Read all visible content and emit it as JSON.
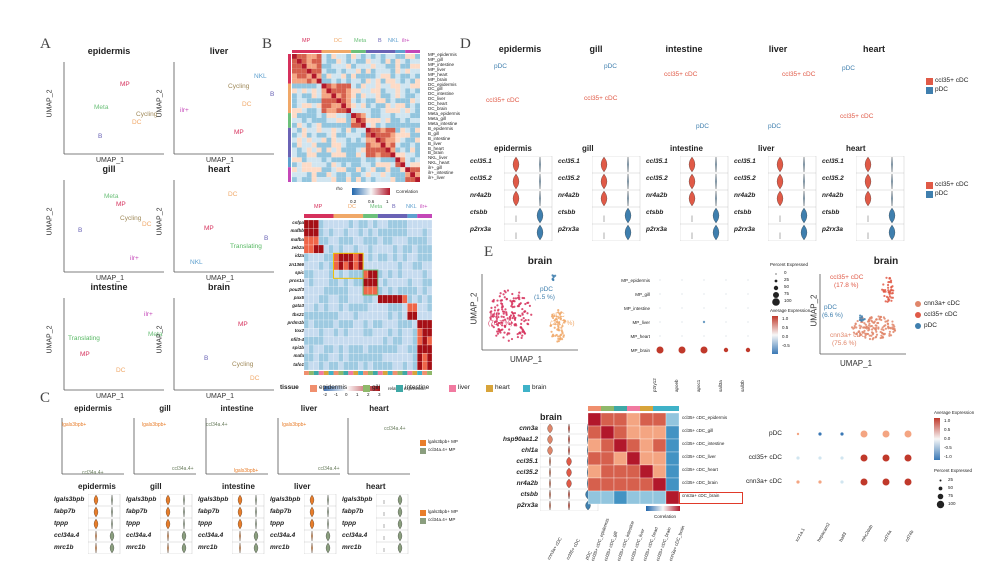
{
  "figure": {
    "panels": [
      "A",
      "B",
      "C",
      "D",
      "E"
    ],
    "umap_x": "UMAP_1",
    "umap_y": "UMAP_2",
    "colors": {
      "mp": "#d6315c",
      "dc": "#f0a868",
      "meta": "#6cc07a",
      "b": "#6a63b5",
      "nkl": "#5fa0cf",
      "ilr": "#c447b8",
      "translating": "#58b964",
      "cycling": "#a08a5a",
      "ccl35": "#e05a47",
      "pdc": "#3f7fae",
      "orange": "#e87d2a",
      "grey": "#8a9e7e",
      "cnn3a": "#e0866a"
    }
  },
  "panelA": {
    "plots": [
      {
        "title": "epidermis",
        "labels": [
          "MP",
          "Meta",
          "Cycling",
          "DC",
          "B"
        ]
      },
      {
        "title": "liver",
        "labels": [
          "NKL",
          "B",
          "Cycling",
          "DC",
          "ilr+",
          "MP"
        ]
      },
      {
        "title": "gill",
        "labels": [
          "Meta",
          "MP",
          "Cycling",
          "B",
          "DC",
          "ilr+"
        ]
      },
      {
        "title": "heart",
        "labels": [
          "DC",
          "MP",
          "Translating",
          "NKL",
          "B"
        ]
      },
      {
        "title": "intestine",
        "labels": [
          "ilr+",
          "Translating",
          "MP",
          "DC",
          "Meta"
        ]
      },
      {
        "title": "brain",
        "labels": [
          "MP",
          "B",
          "Cycling",
          "DC"
        ]
      }
    ]
  },
  "panelB": {
    "top_groups": [
      "MP",
      "DC",
      "Meta",
      "B",
      "NKL",
      "ilr+"
    ],
    "row_labels": [
      "MP_epidermis",
      "MP_gill",
      "MP_intestine",
      "MP_liver",
      "MP_heart",
      "MP_brain",
      "DC_epidermis",
      "DC_gill",
      "DC_intestine",
      "DC_liver",
      "DC_heart",
      "DC_brain",
      "Meta_epidermis",
      "Meta_gill",
      "Meta_intestine",
      "B_epidermis",
      "B_gill",
      "B_intestine",
      "B_liver",
      "B_heart",
      "B_brain",
      "NKL_liver",
      "NKL_heart",
      "ilr+_gill",
      "ilr+_intestine",
      "ilr+_liver"
    ],
    "corr_legend_title": "Correlation",
    "corr_legend_ticks": [
      "0.2",
      "0.6",
      "1"
    ],
    "corr_legend_caption": "rho",
    "genes": [
      "csfpa",
      "mafbb",
      "mafba",
      "zeb2a",
      "id2a",
      "zn1366",
      "spic",
      "prox1a",
      "pou2f3",
      "pax5",
      "gata3",
      "tbx21",
      "prdm1b",
      "tox2",
      "nfil3-4",
      "spi1b",
      "mafa",
      "tafo1"
    ],
    "expr_legend_caption": "relative expression",
    "expr_legend_ticks": [
      "-2",
      "-1",
      "0",
      "1",
      "2",
      "3"
    ],
    "tissue_title": "tissue",
    "tissues": [
      {
        "name": "epidermis",
        "color": "#f08f6e"
      },
      {
        "name": "gill",
        "color": "#8fb86a"
      },
      {
        "name": "intestine",
        "color": "#3fa8a6"
      },
      {
        "name": "liver",
        "color": "#f17aa0"
      },
      {
        "name": "heart",
        "color": "#d8a43a"
      },
      {
        "name": "brain",
        "color": "#3fb2c8"
      }
    ]
  },
  "panelC": {
    "plots": [
      {
        "title": "epidermis",
        "labels": [
          "lgals3bpb+",
          "ccl34a.4+"
        ]
      },
      {
        "title": "gill",
        "labels": [
          "lgals3bpb+",
          "ccl34a.4+"
        ]
      },
      {
        "title": "intestine",
        "labels": [
          "ccl34a.4+",
          "lgals3bpb+"
        ]
      },
      {
        "title": "liver",
        "labels": [
          "lgals3bpb+",
          "ccl34a.4+"
        ]
      },
      {
        "title": "heart",
        "labels": [
          "ccl34a.4+"
        ]
      }
    ],
    "legend": [
      "lgals3bpb+ MP",
      "ccl34a.4+ MP"
    ],
    "violin_titles": [
      "epidermis",
      "gill",
      "intestine",
      "liver",
      "heart"
    ],
    "genes": [
      "lgals3bpb",
      "fabp7b",
      "tppp",
      "ccl34a.4",
      "mrc1b"
    ]
  },
  "panelD": {
    "plots": [
      {
        "title": "epidermis",
        "labels": [
          "pDC",
          "ccl35+ cDC"
        ]
      },
      {
        "title": "gill",
        "labels": [
          "pDC",
          "ccl35+ cDC"
        ]
      },
      {
        "title": "intestine",
        "labels": [
          "ccl35+ cDC",
          "pDC"
        ]
      },
      {
        "title": "liver",
        "labels": [
          "ccl35+ cDC",
          "pDC"
        ]
      },
      {
        "title": "heart",
        "labels": [
          "pDC",
          "ccl35+ cDC"
        ]
      }
    ],
    "legend": [
      "ccl35+ cDC",
      "pDC"
    ],
    "violin_titles": [
      "epidermis",
      "gill",
      "intestine",
      "liver",
      "heart"
    ],
    "genes": [
      "ccl35.1",
      "ccl35.2",
      "nr4a2b",
      "ctsbb",
      "p2rx3a"
    ]
  },
  "panelE": {
    "brain_title": "brain",
    "brain_labels": [
      {
        "name": "pDC",
        "pct": "(1.5 %)"
      },
      {
        "name": "MP",
        "pct": "(76.7 %)"
      },
      {
        "name": "cDC",
        "pct": "(21.7 %)"
      }
    ],
    "dot_rows": [
      "MP_epidermis",
      "MP_gill",
      "MP_intestine",
      "MP_liver",
      "MP_heart",
      "MP_brain"
    ],
    "dot_cols": [
      "p2ry12",
      "apoeb",
      "apoc1",
      "sall3a",
      "sall3b"
    ],
    "pct_title": "Percent Expressed",
    "pct_ticks": [
      "0",
      "25",
      "50",
      "75",
      "100"
    ],
    "avg_title": "Average Expression",
    "avg_ticks": [
      "1.0",
      "0.5",
      "0.0",
      "-0.5"
    ],
    "brain2_title": "brain",
    "brain2_labels": [
      {
        "name": "ccl35+ cDC",
        "pct": "(17.8 %)"
      },
      {
        "name": "pDC",
        "pct": "(6.6 %)"
      },
      {
        "name": "cnn3a+ cDC",
        "pct": "(75.6 %)"
      }
    ],
    "brain2_legend": [
      "cnn3a+ cDC",
      "ccl35+ cDC",
      "pDC"
    ],
    "violin_title": "brain",
    "violin_genes": [
      "cnn3a",
      "hsp90aa1.2",
      "chl1a",
      "ccl35.1",
      "ccl35.2",
      "nr4a2b",
      "ctsbb",
      "p2rx3a"
    ],
    "violin_groups": [
      "cnn3a+ cDC",
      "ccl35+ cDC",
      "pDC"
    ],
    "corr_rows": [
      "ccl35+ cDC_epidermis",
      "ccl35+ cDC_gill",
      "ccl35+ cDC_intestine",
      "ccl35+ cDC_liver",
      "ccl35+ cDC_heart",
      "ccl35+ cDC_brain",
      "cnn3a+ cDC_brain"
    ],
    "corr_caption": "Correlation",
    "dot2_rows": [
      "pDC",
      "ccl35+ cDC",
      "cnn3a+ cDC"
    ],
    "dot2_cols": [
      "xcr1a.1",
      "hepacam2",
      "batf3",
      "mhc2dab",
      "cd74a",
      "cd74b"
    ],
    "avg2_title": "Average Expression",
    "avg2_ticks": [
      "1.0",
      "0.5",
      "0.0",
      "-0.5",
      "-1.0"
    ],
    "pct2_title": "Percent Expressed",
    "pct2_ticks": [
      "25",
      "50",
      "75",
      "100"
    ]
  }
}
